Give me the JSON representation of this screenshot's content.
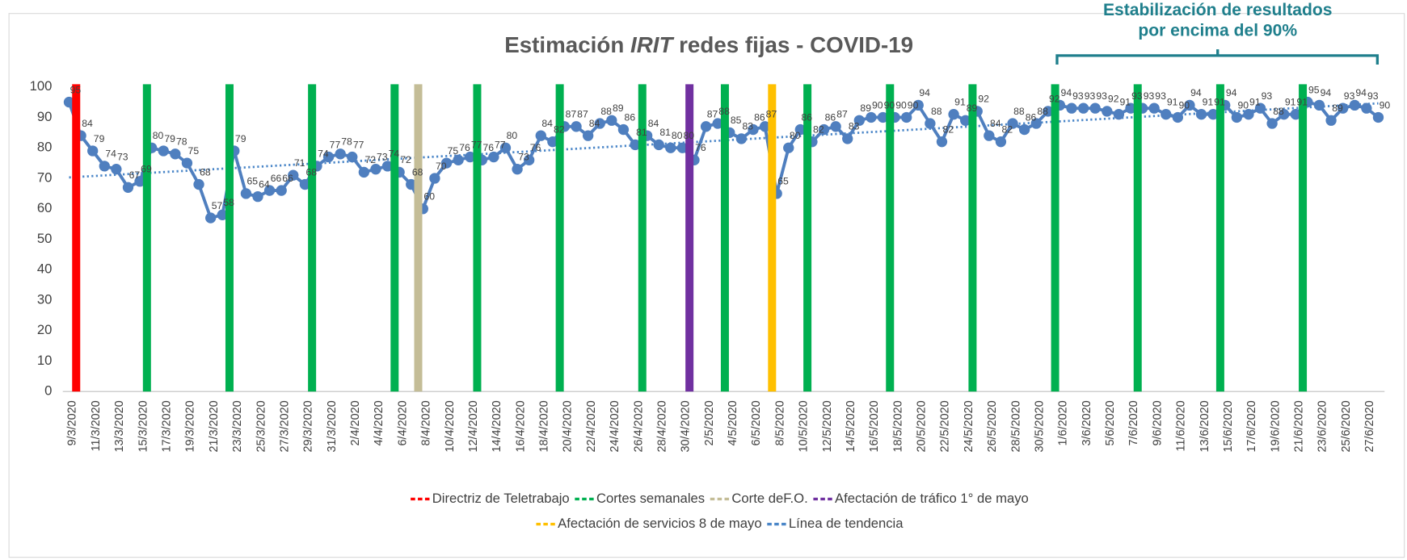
{
  "chart_data": {
    "type": "line",
    "title": [
      "Estimación ",
      "IRIT",
      " redes fijas - COVID-19"
    ],
    "annotation": {
      "lines": [
        "Estabilización de resultados",
        "por encima del 90%"
      ],
      "color": "#1f7f8c"
    },
    "categories": [
      "9/3/2020",
      null,
      "11/3/2020",
      null,
      "13/3/2020",
      null,
      "15/3/2020",
      null,
      "17/3/2020",
      null,
      "19/3/2020",
      null,
      "21/3/2020",
      null,
      "23/3/2020",
      null,
      "25/3/2020",
      null,
      "27/3/2020",
      null,
      "29/3/2020",
      null,
      "31/3/2020",
      null,
      "2/4/2020",
      null,
      "4/4/2020",
      null,
      "6/4/2020",
      null,
      "8/4/2020",
      null,
      "10/4/2020",
      null,
      "12/4/2020",
      null,
      "14/4/2020",
      null,
      "16/4/2020",
      null,
      "18/4/2020",
      null,
      "20/4/2020",
      null,
      "22/4/2020",
      null,
      "24/4/2020",
      null,
      "26/4/2020",
      null,
      "28/4/2020",
      null,
      "30/4/2020",
      null,
      "2/5/2020",
      null,
      "4/5/2020",
      null,
      "6/5/2020",
      null,
      "8/5/2020",
      null,
      "10/5/2020",
      null,
      "12/5/2020",
      null,
      "14/5/2020",
      null,
      "16/5/2020",
      null,
      "18/5/2020",
      null,
      "20/5/2020",
      null,
      "22/5/2020",
      null,
      "24/5/2020",
      null,
      "26/5/2020",
      null,
      "28/5/2020",
      null,
      "30/5/2020",
      null,
      "1/6/2020",
      null,
      "3/6/2020",
      null,
      "5/6/2020",
      null,
      "7/6/2020",
      null,
      "9/6/2020",
      null,
      "11/6/2020",
      null,
      "13/6/2020",
      null,
      "15/6/2020",
      null,
      "17/6/2020",
      null,
      "19/6/2020",
      null,
      "21/6/2020",
      null,
      "23/6/2020",
      null,
      "25/6/2020",
      null,
      "27/6/2020",
      null
    ],
    "ylim": [
      0,
      100
    ],
    "yticks": [
      0,
      10,
      20,
      30,
      40,
      50,
      60,
      70,
      80,
      90,
      100
    ],
    "grid": false,
    "series": [
      {
        "color": "#4f7fbf",
        "values": [
          95,
          84,
          79,
          74,
          73,
          67,
          69,
          80,
          79,
          78,
          75,
          68,
          57,
          58,
          79,
          65,
          64,
          66,
          66,
          71,
          68,
          74,
          77,
          78,
          77,
          72,
          73,
          74,
          72,
          68,
          60,
          70,
          75,
          76,
          77,
          76,
          77,
          80,
          73,
          76,
          84,
          82,
          87,
          87,
          84,
          88,
          89,
          86,
          81,
          84,
          81,
          80,
          80,
          76,
          87,
          88,
          85,
          83,
          86,
          87,
          65,
          80,
          86,
          82,
          86,
          87,
          83,
          89,
          90,
          90,
          90,
          90,
          94,
          88,
          82,
          91,
          89,
          92,
          84,
          82,
          88,
          86,
          88,
          92,
          94,
          93,
          93,
          93,
          92,
          91,
          93,
          93,
          93,
          91,
          90,
          94,
          91,
          91,
          94,
          90,
          91,
          93,
          88,
          91,
          91,
          95,
          94,
          89,
          93,
          94,
          93,
          90
        ]
      },
      {
        "type": "bar",
        "name": "Directriz de Teletrabajo",
        "color": "#ff0000",
        "values": [
          100,
          null,
          null,
          null,
          null,
          null,
          null,
          null,
          null,
          null,
          null,
          null,
          null,
          null,
          null,
          null,
          null,
          null,
          null,
          null,
          null,
          null,
          null,
          null,
          null,
          null,
          null,
          null,
          null,
          null,
          null,
          null,
          null,
          null,
          null,
          null,
          null,
          null,
          null,
          null,
          null,
          null,
          null,
          null,
          null,
          null,
          null,
          null,
          null,
          null,
          null,
          null,
          null,
          null,
          null,
          null,
          null,
          null,
          null,
          null,
          null,
          null,
          null,
          null,
          null,
          null,
          null,
          null,
          null,
          null,
          null,
          null,
          null,
          null,
          null,
          null,
          null,
          null,
          null,
          null,
          null,
          null,
          null,
          null,
          null,
          null,
          null,
          null,
          null,
          null,
          null,
          null,
          null,
          null,
          null,
          null,
          null,
          null,
          null,
          null,
          null,
          null,
          null,
          null,
          null,
          null,
          null,
          null,
          null,
          null,
          null,
          null
        ]
      },
      {
        "type": "bar",
        "name": "Cortes semanales",
        "color": "#00b050",
        "values": [
          null,
          null,
          null,
          null,
          null,
          null,
          100,
          null,
          null,
          null,
          null,
          null,
          null,
          100,
          null,
          null,
          null,
          null,
          null,
          null,
          100,
          null,
          null,
          null,
          null,
          null,
          null,
          100,
          null,
          null,
          null,
          null,
          null,
          null,
          100,
          null,
          null,
          null,
          null,
          null,
          null,
          100,
          null,
          null,
          null,
          null,
          null,
          null,
          100,
          null,
          null,
          null,
          null,
          null,
          null,
          100,
          null,
          null,
          null,
          null,
          null,
          null,
          100,
          null,
          null,
          null,
          null,
          null,
          null,
          100,
          null,
          null,
          null,
          null,
          null,
          null,
          100,
          null,
          null,
          null,
          null,
          null,
          null,
          100,
          null,
          null,
          null,
          null,
          null,
          null,
          100,
          null,
          null,
          null,
          null,
          null,
          null,
          100,
          null,
          null,
          null,
          null,
          null,
          null,
          100,
          null,
          null,
          null,
          null,
          null,
          null,
          null
        ]
      },
      {
        "type": "bar",
        "name": "Corte deF.O.",
        "color": "#c4bd97",
        "values": [
          null,
          null,
          null,
          null,
          null,
          null,
          null,
          null,
          null,
          null,
          null,
          null,
          null,
          null,
          null,
          null,
          null,
          null,
          null,
          null,
          null,
          null,
          null,
          null,
          null,
          null,
          null,
          null,
          null,
          100,
          null,
          null,
          null,
          null,
          null,
          null,
          null,
          null,
          null,
          null,
          null,
          null,
          null,
          null,
          null,
          null,
          null,
          null,
          null,
          null,
          null,
          null,
          null,
          null,
          null,
          null,
          null,
          null,
          null,
          null,
          null,
          null,
          null,
          null,
          null,
          null,
          null,
          null,
          null,
          null,
          null,
          null,
          null,
          null,
          null,
          null,
          null,
          null,
          null,
          null,
          null,
          null,
          null,
          null,
          null,
          null,
          null,
          null,
          null,
          null,
          null,
          null,
          null,
          null,
          null,
          null,
          null,
          null,
          null,
          null,
          null,
          null,
          null,
          null,
          null,
          null,
          null,
          null,
          null,
          null,
          null,
          null
        ]
      },
      {
        "type": "bar",
        "name": "Afectación de tráfico 1° de mayo",
        "color": "#7030a0",
        "values": [
          null,
          null,
          null,
          null,
          null,
          null,
          null,
          null,
          null,
          null,
          null,
          null,
          null,
          null,
          null,
          null,
          null,
          null,
          null,
          null,
          null,
          null,
          null,
          null,
          null,
          null,
          null,
          null,
          null,
          null,
          null,
          null,
          null,
          null,
          null,
          null,
          null,
          null,
          null,
          null,
          null,
          null,
          null,
          null,
          null,
          null,
          null,
          null,
          null,
          null,
          null,
          null,
          100,
          null,
          null,
          null,
          null,
          null,
          null,
          null,
          null,
          null,
          null,
          null,
          null,
          null,
          null,
          null,
          null,
          null,
          null,
          null,
          null,
          null,
          null,
          null,
          null,
          null,
          null,
          null,
          null,
          null,
          null,
          null,
          null,
          null,
          null,
          null,
          null,
          null,
          null,
          null,
          null,
          null,
          null,
          null,
          null,
          null,
          null,
          null,
          null,
          null,
          null,
          null,
          null,
          null,
          null,
          null,
          null,
          null,
          null,
          null
        ]
      },
      {
        "type": "bar",
        "name": "Afectación de servicios 8 de mayo",
        "color": "#ffc000",
        "values": [
          null,
          null,
          null,
          null,
          null,
          null,
          null,
          null,
          null,
          null,
          null,
          null,
          null,
          null,
          null,
          null,
          null,
          null,
          null,
          null,
          null,
          null,
          null,
          null,
          null,
          null,
          null,
          null,
          null,
          null,
          null,
          null,
          null,
          null,
          null,
          null,
          null,
          null,
          null,
          null,
          null,
          null,
          null,
          null,
          null,
          null,
          null,
          null,
          null,
          null,
          null,
          null,
          null,
          null,
          null,
          null,
          null,
          null,
          null,
          100,
          null,
          null,
          null,
          null,
          null,
          null,
          null,
          null,
          null,
          null,
          null,
          null,
          null,
          null,
          null,
          null,
          null,
          null,
          null,
          null,
          null,
          null,
          null,
          null,
          null,
          null,
          null,
          null,
          null,
          null,
          null,
          null,
          null,
          null,
          null,
          null,
          null,
          null,
          null,
          null,
          null,
          null,
          null,
          null,
          null,
          null,
          null,
          null,
          null,
          null,
          null,
          null
        ]
      }
    ],
    "trend": {
      "name": "Línea de tendencia",
      "color": "#4a86c8",
      "values": [
        70.3,
        94.6
      ]
    }
  }
}
